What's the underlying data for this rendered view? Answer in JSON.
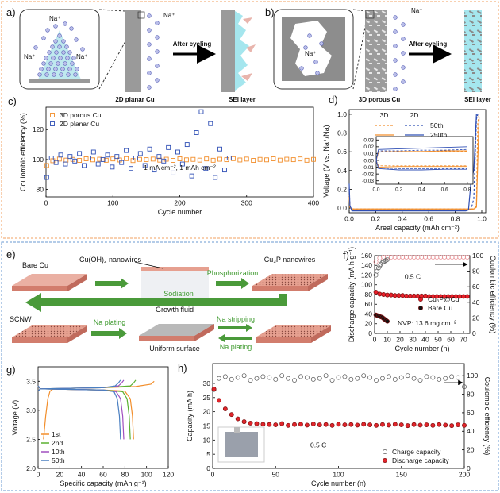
{
  "schematic_a": {
    "panel": "a)",
    "ions": [
      "Na⁺",
      "Na⁺",
      "Na⁺",
      "Na⁺"
    ],
    "step": "After cycling",
    "substrate": "2D planar Cu",
    "sei": "SEI layer"
  },
  "schematic_b": {
    "panel": "b)",
    "ions": [
      "Na⁺",
      "Na⁺"
    ],
    "step": "After cycling",
    "substrate": "3D porous Cu",
    "sei": "SEI layer"
  },
  "schematic_e": {
    "panel": "e)",
    "bare": "Bare Cu",
    "precursor": "Cu(OH)₂ nanowires",
    "fluid": "Growth fluid",
    "step1": "Phosphorization",
    "product": "Cu₃P nanowires",
    "sodiation": "Sodiation",
    "scnw": "SCNW",
    "plating1": "Na plating",
    "surface": "Uniform surface",
    "stripping": "Na stripping",
    "plating2": "Na plating"
  },
  "chart_data": [
    {
      "panel": "c)",
      "type": "scatter",
      "xlabel": "Cycle number",
      "ylabel": "Coulombic efficiency (%)",
      "xlim": [
        0,
        400
      ],
      "xticks": [
        0,
        100,
        200,
        300,
        400
      ],
      "ylim": [
        75,
        135
      ],
      "yticks": [
        80,
        100,
        120
      ],
      "legend": "upper left",
      "annotations": [
        "1 mA cm⁻², 1 mAh cm⁻²"
      ],
      "series": [
        {
          "name": "3D porous Cu",
          "color": "#f28e2b",
          "marker": "square-open",
          "x": [
            1,
            10,
            20,
            30,
            40,
            50,
            60,
            70,
            80,
            90,
            100,
            110,
            120,
            130,
            140,
            150,
            160,
            170,
            180,
            190,
            200,
            210,
            220,
            230,
            240,
            250,
            260,
            270,
            280,
            290,
            300,
            310,
            320,
            330,
            340,
            350,
            360,
            370,
            380,
            390,
            400
          ],
          "values": [
            96,
            99.2,
            100.3,
            99.6,
            100.1,
            99.4,
            100.5,
            99.8,
            100.2,
            99.5,
            100.4,
            99.7,
            100.6,
            99.3,
            100.1,
            99.9,
            100.3,
            99.6,
            100.2,
            99.4,
            100.5,
            99.8,
            100.1,
            99.6,
            100.4,
            99.5,
            100.2,
            99.9,
            100.6,
            99.7,
            100.3,
            99.4,
            100.1,
            99.8,
            100.5,
            99.6,
            100.2,
            99.9,
            100.4,
            99.5,
            100.1
          ]
        },
        {
          "name": "2D planar  Cu",
          "color": "#2f4fb5",
          "marker": "square-open",
          "x": [
            1,
            8,
            15,
            22,
            29,
            36,
            43,
            50,
            57,
            64,
            71,
            78,
            85,
            92,
            99,
            106,
            113,
            120,
            127,
            134,
            141,
            148,
            155,
            162,
            169,
            176,
            183,
            190,
            197,
            204,
            211,
            218,
            225,
            232,
            239,
            246,
            253,
            260,
            267,
            274
          ],
          "values": [
            88,
            101,
            98,
            103,
            97,
            102,
            99,
            104,
            96,
            101,
            105,
            97,
            100,
            103,
            95,
            102,
            98,
            106,
            94,
            101,
            104,
            96,
            107,
            93,
            102,
            99,
            108,
            91,
            105,
            97,
            110,
            89,
            118,
            132,
            94,
            124,
            88,
            107,
            93,
            101
          ]
        }
      ]
    },
    {
      "panel": "d)",
      "type": "line",
      "xlabel": "Areal capacity (mAh cm⁻²)",
      "ylabel": "Voltage (V vs. Na⁺/Na)",
      "xlim": [
        0,
        1.03
      ],
      "xticks": [
        {
          "value": 0,
          "label": "0.0"
        },
        0.2,
        0.4,
        0.6,
        0.8,
        {
          "value": 1,
          "label": "1.0"
        }
      ],
      "ylim": [
        -0.05,
        1.05
      ],
      "yticks": [
        {
          "value": 0,
          "label": "0.0"
        },
        0.2,
        0.4,
        0.6,
        0.8,
        {
          "value": 1,
          "label": "1.0"
        }
      ],
      "legend_columns": [
        "3D",
        "2D"
      ],
      "legend_rows": [
        "50th",
        "250th"
      ],
      "x": [
        0,
        0.005,
        0.02,
        0.1,
        0.5,
        0.85,
        0.88,
        0.9,
        0.92,
        0.94,
        0.96,
        0.97,
        0.98
      ],
      "series": [
        {
          "color": "#f28e2b",
          "dash": true,
          "values": [
            0.15,
            0.01,
            -0.01,
            -0.01,
            -0.01,
            -0.01,
            -0.01,
            -0.01,
            -0.01,
            -0.01,
            0.02,
            0.9,
            1.0
          ]
        },
        {
          "color": "#2f4fb5",
          "dash": true,
          "values": [
            0.2,
            0.02,
            -0.02,
            -0.02,
            -0.02,
            -0.02,
            -0.02,
            -0.02,
            -0.01,
            0.1,
            0.95,
            1.0,
            null
          ]
        },
        {
          "color": "#f28e2b",
          "dash": false,
          "values": [
            0.12,
            0.01,
            -0.01,
            -0.01,
            -0.01,
            -0.01,
            -0.01,
            -0.01,
            -0.01,
            -0.01,
            0.01,
            0.5,
            0.97
          ]
        },
        {
          "color": "#2f4fb5",
          "dash": false,
          "values": [
            0.26,
            0.03,
            -0.03,
            -0.03,
            -0.03,
            -0.03,
            -0.03,
            -0.02,
            0.3,
            0.4,
            1.0,
            null,
            null
          ]
        }
      ],
      "inset": {
        "type": "line",
        "xlim": [
          0,
          0.85
        ],
        "xticks": [
          {
            "value": 0,
            "label": "0.0"
          },
          0.2,
          0.4,
          0.6,
          0.8
        ],
        "ylim": [
          -0.035,
          0.035
        ],
        "yticks": [
          0.03,
          0.02,
          0.01,
          {
            "value": 0,
            "label": "0.00"
          },
          -0.01,
          -0.02,
          -0.03
        ],
        "x": [
          0,
          0.02,
          0.2,
          0.4,
          0.6,
          0.8
        ],
        "series": [
          {
            "color": "#f28e2b",
            "dash": true,
            "values": [
              0,
              0.013,
              0.013,
              0.013,
              0.013,
              0.013
            ]
          },
          {
            "color": "#f28e2b",
            "dash": true,
            "values": [
              0,
              -0.008,
              -0.008,
              -0.008,
              -0.008,
              -0.008
            ]
          },
          {
            "color": "#f28e2b",
            "dash": false,
            "values": [
              0,
              0.012,
              0.013,
              0.013,
              0.014,
              0.014
            ]
          },
          {
            "color": "#f28e2b",
            "dash": false,
            "values": [
              0,
              -0.01,
              -0.009,
              -0.009,
              -0.009,
              -0.009
            ]
          },
          {
            "color": "#2f4fb5",
            "dash": true,
            "values": [
              0,
              0.014,
              0.014,
              0.015,
              0.015,
              0.016
            ]
          },
          {
            "color": "#2f4fb5",
            "dash": true,
            "values": [
              0,
              -0.011,
              -0.012,
              -0.012,
              -0.012,
              -0.012
            ]
          },
          {
            "color": "#2f4fb5",
            "dash": false,
            "values": [
              0,
              0.016,
              0.017,
              0.018,
              0.019,
              0.02
            ]
          },
          {
            "color": "#2f4fb5",
            "dash": false,
            "values": [
              0,
              -0.012,
              -0.014,
              -0.014,
              -0.013,
              -0.013
            ]
          }
        ]
      }
    },
    {
      "panel": "f)",
      "type": "scatter",
      "xlabel": "Cycle number (n)",
      "ylabel": "Discharge capacity (mA h g⁻¹)",
      "y2label": "Coulombic efficiency (%)",
      "xlim": [
        0,
        75
      ],
      "xticks": [
        0,
        10,
        20,
        30,
        40,
        50,
        60,
        70
      ],
      "ylim": [
        0,
        160
      ],
      "yticks": [
        0,
        20,
        40,
        60,
        80,
        100,
        120,
        140,
        160
      ],
      "y2lim": [
        0,
        100
      ],
      "y2ticks": [
        0,
        20,
        40,
        60,
        80,
        100
      ],
      "legend": "center right",
      "annotations": [
        "0.5 C",
        "NVP: 13.6 mg cm⁻²"
      ],
      "series": [
        {
          "name": "Cu₃P@Cu",
          "color": "#e8202a",
          "marker": "circle",
          "x": [
            1,
            4,
            7,
            10,
            13,
            16,
            19,
            22,
            25,
            28,
            31,
            34,
            37,
            40,
            43,
            46,
            49,
            52,
            55,
            58,
            61,
            64,
            67,
            70,
            73
          ],
          "values": [
            85,
            81,
            80,
            79,
            79,
            78,
            78,
            78,
            77,
            77,
            77,
            77,
            77,
            77,
            76,
            76,
            76,
            76,
            76,
            76,
            76,
            76,
            76,
            76,
            76
          ]
        },
        {
          "name": "Bare Cu",
          "color": "#111111",
          "marker": "circle",
          "x": [
            1,
            2,
            3,
            4,
            5,
            6,
            7,
            8,
            9,
            10
          ],
          "values": [
            38,
            37,
            36,
            35,
            34,
            33,
            31,
            29,
            27,
            25
          ]
        },
        {
          "color": "#e88a8f",
          "marker": "circle-open",
          "axis": "y2",
          "x": [
            1,
            4,
            7,
            10,
            13,
            16,
            19,
            22,
            25,
            28,
            31,
            34,
            37,
            40,
            43,
            46,
            49,
            52,
            55,
            58,
            61,
            64,
            67,
            70,
            73
          ],
          "values": [
            92,
            97,
            98,
            98,
            98,
            98,
            98,
            98,
            98,
            98,
            98,
            98,
            98,
            98,
            98,
            98,
            98,
            98,
            98,
            98,
            98,
            98,
            98,
            98,
            98
          ]
        },
        {
          "color": "#666666",
          "marker": "circle-open",
          "axis": "y2",
          "x": [
            1,
            2,
            3,
            4,
            5,
            6,
            7,
            8,
            9,
            10
          ],
          "values": [
            75,
            80,
            84,
            87,
            89,
            91,
            92,
            93,
            94,
            95
          ]
        }
      ]
    },
    {
      "panel": "g)",
      "type": "line",
      "xlabel": "Specific capacity (mAh g⁻¹)",
      "ylabel": "Voltage (V)",
      "xlim": [
        0,
        120
      ],
      "xticks": [
        0,
        20,
        40,
        60,
        80,
        100,
        120
      ],
      "ylim": [
        2.0,
        3.75
      ],
      "yticks": [
        {
          "value": 2,
          "label": "2.0"
        },
        2.5,
        {
          "value": 3,
          "label": "3.0"
        },
        3.5
      ],
      "legend": "lower left",
      "series": [
        {
          "name": "1st",
          "color": "#f28e2b",
          "x": [
            5,
            7,
            9,
            11,
            14,
            30,
            60,
            90,
            104,
            107,
            null,
            0,
            2,
            30,
            60,
            80,
            85,
            87,
            88
          ],
          "values": [
            2.5,
            2.9,
            3.2,
            3.33,
            3.37,
            3.38,
            3.39,
            3.41,
            3.45,
            3.5,
            null,
            3.42,
            3.37,
            3.36,
            3.35,
            3.33,
            3.2,
            2.9,
            2.5
          ]
        },
        {
          "name": "2nd",
          "color": "#5ab031",
          "x": [
            0,
            2,
            30,
            60,
            85,
            88,
            90,
            null,
            0,
            2,
            30,
            60,
            78,
            82,
            84,
            85
          ],
          "values": [
            3.33,
            3.37,
            3.38,
            3.39,
            3.42,
            3.47,
            3.52,
            null,
            3.42,
            3.37,
            3.36,
            3.35,
            3.32,
            3.2,
            2.9,
            2.5
          ]
        },
        {
          "name": "10th",
          "color": "#a14fbf",
          "x": [
            0,
            2,
            30,
            60,
            74,
            77,
            79,
            null,
            0,
            2,
            30,
            60,
            72,
            76,
            78,
            79
          ],
          "values": [
            3.33,
            3.37,
            3.38,
            3.39,
            3.42,
            3.47,
            3.52,
            null,
            3.42,
            3.37,
            3.36,
            3.35,
            3.32,
            3.2,
            2.9,
            2.5
          ]
        },
        {
          "name": "50th",
          "color": "#4a7fc1",
          "x": [
            0,
            2,
            30,
            60,
            71,
            74,
            76,
            null,
            0,
            2,
            30,
            60,
            70,
            73,
            75,
            76
          ],
          "values": [
            3.33,
            3.37,
            3.38,
            3.39,
            3.42,
            3.47,
            3.52,
            null,
            3.42,
            3.37,
            3.36,
            3.35,
            3.32,
            3.2,
            2.9,
            2.5
          ]
        }
      ]
    },
    {
      "panel": "h)",
      "type": "scatter",
      "xlabel": "Cycle number (n)",
      "ylabel": "Capacity (mA h)",
      "y2label": "Coulombic efficiency (%)",
      "xlim": [
        0,
        200
      ],
      "xticks": [
        0,
        50,
        100,
        150,
        200
      ],
      "ylim": [
        0,
        37
      ],
      "yticks": [
        0,
        5,
        10,
        15,
        20,
        25,
        30
      ],
      "y2lim": [
        0,
        113
      ],
      "y2ticks": [
        0,
        20,
        40,
        60,
        80,
        100
      ],
      "legend": "lower right",
      "annotations": [
        "0.5 C"
      ],
      "x": [
        1,
        5,
        10,
        15,
        20,
        25,
        30,
        35,
        40,
        45,
        50,
        55,
        60,
        65,
        70,
        75,
        80,
        85,
        90,
        95,
        100,
        105,
        110,
        115,
        120,
        125,
        130,
        135,
        140,
        145,
        150,
        155,
        160,
        165,
        170,
        175,
        180,
        185,
        190,
        195,
        200
      ],
      "series": [
        {
          "name": "Charge capacity",
          "color": "#555555",
          "marker": "circle-open",
          "axis": "y2",
          "values": [
            85,
            97,
            99,
            96,
            98,
            100,
            95,
            97,
            99,
            98,
            96,
            100,
            97,
            95,
            99,
            98,
            96,
            97,
            100,
            95,
            98,
            99,
            96,
            97,
            100,
            98,
            95,
            97,
            99,
            96,
            98,
            100,
            97,
            95,
            99,
            98,
            96,
            97,
            99,
            98,
            88
          ]
        },
        {
          "name": "Discharge capacity",
          "color": "#e0252b",
          "marker": "circle",
          "values": [
            28,
            24,
            21,
            19,
            17.5,
            16.5,
            16,
            15.8,
            15.6,
            15.5,
            15.4,
            15.8,
            15.2,
            15.5,
            15.6,
            15.3,
            15.7,
            15.4,
            15.5,
            15.2,
            15.6,
            15.4,
            15.5,
            15.3,
            15.6,
            15.4,
            15.2,
            15.5,
            15.3,
            15.6,
            15.4,
            15.1,
            15.5,
            15.3,
            15.4,
            15.2,
            15.5,
            15.3,
            15.1,
            15.4,
            15.2
          ]
        }
      ]
    }
  ]
}
